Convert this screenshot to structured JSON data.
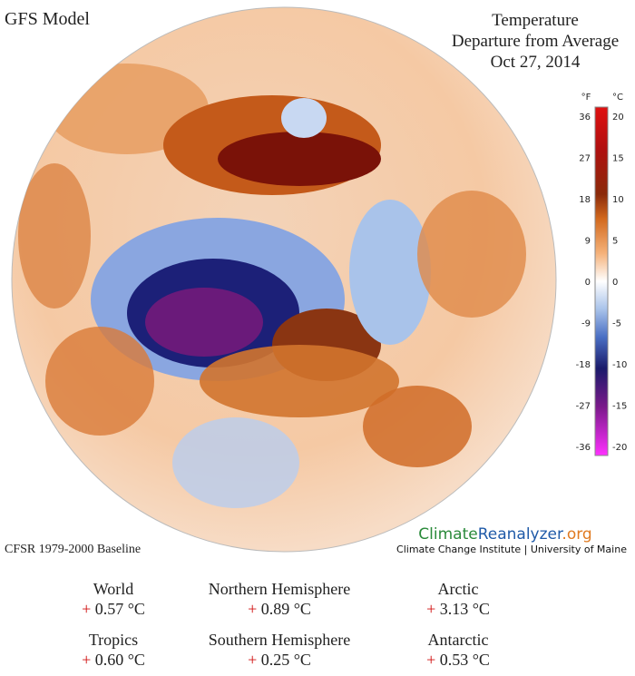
{
  "header": {
    "model": "GFS Model",
    "title": [
      "Temperature",
      "Departure from Average",
      "Oct 27, 2014"
    ]
  },
  "colorbar": {
    "f_unit": "°F",
    "c_unit": "°C",
    "f_labels": [
      "36",
      "27",
      "18",
      "9",
      "0",
      "-9",
      "-18",
      "-27",
      "-36"
    ],
    "c_labels": [
      "20",
      "15",
      "10",
      "5",
      "0",
      "-5",
      "-10",
      "-15",
      "-20"
    ]
  },
  "footer": {
    "baseline": "CFSR 1979-2000 Baseline",
    "logo": [
      "Climate",
      "Reanalyzer",
      ".org"
    ],
    "institute": "Climate Change Institute | University of Maine"
  },
  "stats": [
    {
      "name": "World",
      "sign": "+",
      "value": "0.57 °C"
    },
    {
      "name": "Northern Hemisphere",
      "sign": "+",
      "value": "0.89 °C"
    },
    {
      "name": "Arctic",
      "sign": "+",
      "value": "3.13 °C"
    },
    {
      "name": "Tropics",
      "sign": "+",
      "value": "0.60 °C"
    },
    {
      "name": "Southern Hemisphere",
      "sign": "+",
      "value": "0.25 °C"
    },
    {
      "name": "Antarctic",
      "sign": "+",
      "value": "0.53 °C"
    }
  ]
}
